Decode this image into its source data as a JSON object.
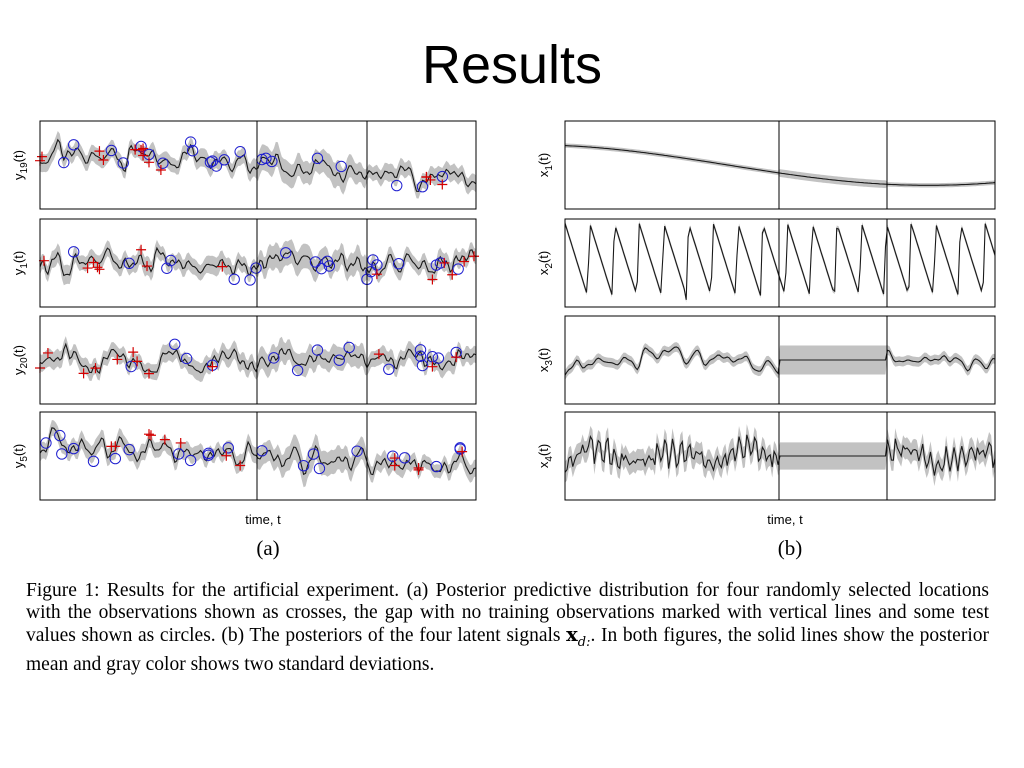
{
  "slide": {
    "title": "Results"
  },
  "figure": {
    "caption": "Figure 1: Results for the artificial experiment. (a) Posterior predictive distribution for four randomly selected locations with the observations shown as crosses, the gap with no training observations marked with vertical lines and some test values shown as circles.  (b) The posteriors of the four latent signals x_{d:}. In both figures, the solid lines show the posterior mean and gray color shows two standard deviations.",
    "caption_parts": {
      "before_math": "Figure 1: Results for the artificial experiment. (a) Posterior predictive distribution for four randomly selected locations with the observations shown as crosses, the gap with no training observations marked with vertical lines and some test values shown as circles.  (b) The posteriors of the four latent signals ",
      "math_base": "x",
      "math_sub": "d:",
      "after_math": ". In both figures, the solid lines show the posterior mean and gray color shows two standard deviations."
    }
  },
  "colors": {
    "band": "#c2c2c2",
    "mean_line": "#1a1a1a",
    "cross": "#d40000",
    "circle": "#1f1fd0",
    "frame": "#000000"
  },
  "chart_data": [
    {
      "panel_label": "(a)",
      "type": "line",
      "xlabel": "time, t",
      "gap_lines": "two vertical lines per plot mark the gap with no training observations",
      "legend": "none",
      "grid": false,
      "rows": [
        {
          "ylabel_base": "y",
          "ylabel_sub": "19",
          "ylabel_suffix": "(t)",
          "trend": "decreasing",
          "crosses": 14,
          "circles": 22
        },
        {
          "ylabel_base": "y",
          "ylabel_sub": "1",
          "ylabel_suffix": "(t)",
          "trend": "flat",
          "crosses": 14,
          "circles": 20
        },
        {
          "ylabel_base": "y",
          "ylabel_sub": "20",
          "ylabel_suffix": "(t)",
          "trend": "flat",
          "crosses": 12,
          "circles": 16
        },
        {
          "ylabel_base": "y",
          "ylabel_sub": "5",
          "ylabel_suffix": "(t)",
          "trend": "decreasing",
          "crosses": 13,
          "circles": 22
        }
      ]
    },
    {
      "panel_label": "(b)",
      "type": "line",
      "xlabel": "time, t",
      "legend": "none",
      "grid": false,
      "rows": [
        {
          "ylabel_base": "x",
          "ylabel_sub": "1",
          "ylabel_suffix": "(t)",
          "shape": "slow-sine"
        },
        {
          "ylabel_base": "x",
          "ylabel_sub": "2",
          "ylabel_suffix": "(t)",
          "shape": "sawtooth"
        },
        {
          "ylabel_base": "x",
          "ylabel_sub": "3",
          "ylabel_suffix": "(t)",
          "shape": "smooth-with-gap"
        },
        {
          "ylabel_base": "x",
          "ylabel_sub": "4",
          "ylabel_suffix": "(t)",
          "shape": "noise-with-gap"
        }
      ]
    }
  ]
}
